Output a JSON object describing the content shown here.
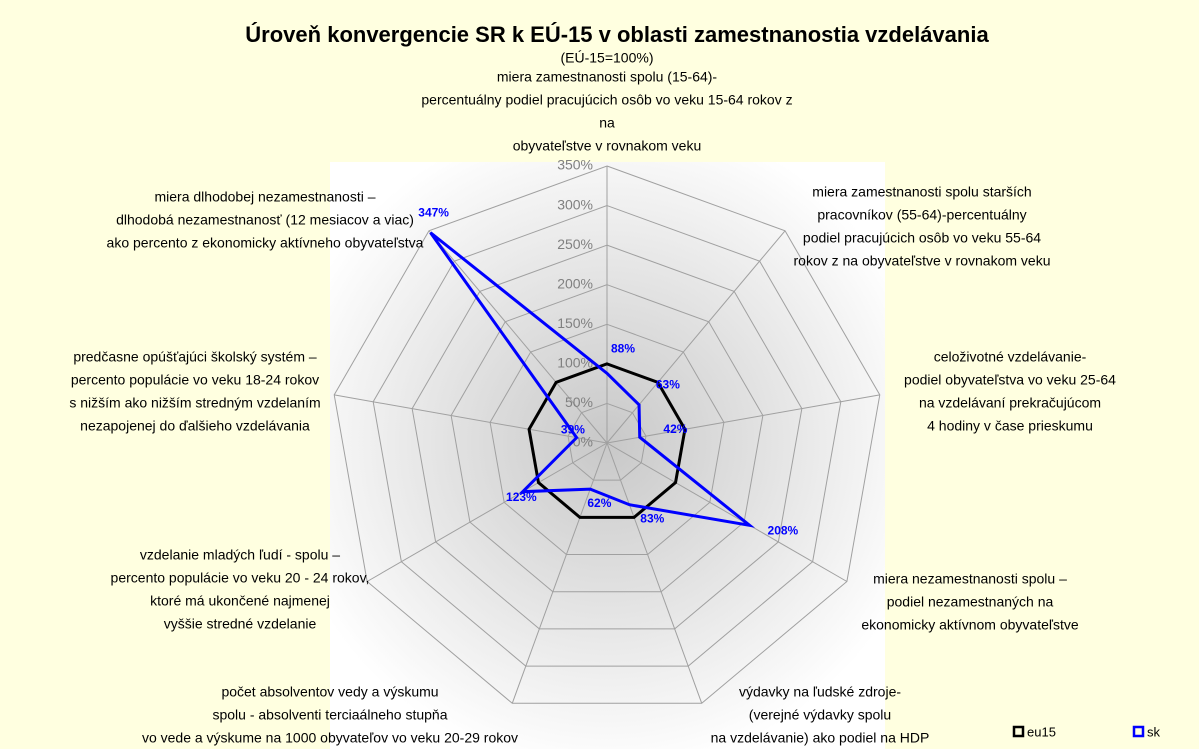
{
  "chart_data": {
    "type": "radar",
    "title": "Úroveň konvergencie SR k EÚ-15 v oblasti zamestnanostia vzdelávania",
    "subtitle": "(EÚ-15=100%)",
    "categories": [
      [
        "miera zamestnanosti spolu (15-64)-",
        "percentuálny podiel pracujúcich osôb vo veku 15-64 rokov z",
        "na",
        "obyvateľstve v rovnakom veku"
      ],
      [
        "miera zamestnanosti spolu starších",
        "pracovníkov (55-64)-percentuálny",
        "podiel pracujúcich osôb vo veku 55-64",
        "rokov z na obyvateľstve v rovnakom veku"
      ],
      [
        "celoživotné vzdelávanie-",
        "podiel obyvateľstva vo veku 25-64",
        "na vzdelávaní prekračujúcom",
        "4 hodiny v čase prieskumu"
      ],
      [
        "miera nezamestnanosti spolu –",
        "podiel nezamestnaných na",
        "ekonomicky aktívnom obyvateľstve"
      ],
      [
        "výdavky na ľudské zdroje-",
        "(verejné výdavky spolu",
        "na vzdelávanie) ako podiel na HDP"
      ],
      [
        "počet absolventov vedy a výskumu",
        "spolu - absolventi terciaálneho stupňa",
        "vo vede a výskume na 1000 obyvateľov vo veku 20-29 rokov"
      ],
      [
        "vzdelanie mladých ľudí - spolu –",
        "percento populácie vo veku 20 - 24 rokov,",
        "ktoré má ukončené najmenej",
        "vyššie stredné vzdelanie"
      ],
      [
        "predčasne opúšťajúci školský systém –",
        "percento populácie vo veku 18-24 rokov",
        "s nižším ako nižším stredným vzdelaním",
        "nezapojenej do ďalšieho vzdelávania"
      ],
      [
        "miera dlhodobej nezamestnanosti –",
        "dlhodobá nezamestnanosť (12 mesiacov a viac)",
        "ako percento z ekonomicky aktívneho obyvateľstva"
      ]
    ],
    "series": [
      {
        "name": "eu15",
        "color": "#000000",
        "values": [
          100,
          100,
          100,
          100,
          100,
          100,
          100,
          100,
          100
        ]
      },
      {
        "name": "sk",
        "color": "#0000ff",
        "values": [
          88,
          63,
          42,
          208,
          83,
          62,
          123,
          39,
          347
        ],
        "value_labels": [
          "88%",
          "63%",
          "42%",
          "208%",
          "83%",
          "62%",
          "123%",
          "39%",
          "347%"
        ]
      }
    ],
    "rlim": [
      0,
      350
    ],
    "rticks": [
      {
        "value": 0,
        "label": "0%"
      },
      {
        "value": 50,
        "label": "50%"
      },
      {
        "value": 100,
        "label": "100%"
      },
      {
        "value": 150,
        "label": "150%"
      },
      {
        "value": 200,
        "label": "200%"
      },
      {
        "value": 250,
        "label": "250%"
      },
      {
        "value": 300,
        "label": "300%"
      },
      {
        "value": 350,
        "label": "350%"
      }
    ],
    "grid": true
  }
}
